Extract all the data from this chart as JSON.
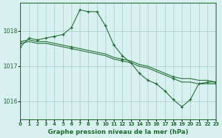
{
  "title": "Graphe pression niveau de la mer (hPa)",
  "background_color": "#d8f0f0",
  "grid_color": "#a0c8c8",
  "line_color": "#1a6b2a",
  "xlim": [
    0,
    23
  ],
  "ylim": [
    1015.5,
    1018.8
  ],
  "yticks": [
    1016,
    1017,
    1018
  ],
  "xticks": [
    0,
    1,
    2,
    3,
    4,
    5,
    6,
    7,
    8,
    9,
    10,
    11,
    12,
    13,
    14,
    15,
    16,
    17,
    18,
    19,
    20,
    21,
    22,
    23
  ],
  "series": [
    {
      "x": [
        0,
        1,
        2,
        3,
        4,
        5,
        6,
        7,
        8,
        9,
        10,
        11,
        12,
        13,
        14,
        15,
        16,
        17,
        18,
        19,
        20,
        21,
        22,
        23
      ],
      "y": [
        1017.55,
        1017.8,
        1017.75,
        1017.8,
        1017.85,
        1017.9,
        1018.1,
        1018.6,
        1018.55,
        1018.55,
        1018.15,
        1017.6,
        1017.3,
        1017.1,
        1016.8,
        1016.6,
        1016.5,
        1016.3,
        1016.05,
        1015.85,
        1016.05,
        1016.5,
        1016.55,
        1016.55
      ],
      "marker_x": [
        0,
        1,
        2,
        3,
        4,
        5,
        6,
        7,
        8,
        9,
        10,
        11,
        12,
        13,
        14,
        15,
        16,
        17,
        18,
        19,
        20,
        21,
        22,
        23
      ]
    },
    {
      "x": [
        0,
        1,
        2,
        3,
        4,
        5,
        6,
        7,
        8,
        9,
        10,
        11,
        12,
        13,
        14,
        15,
        16,
        17,
        18,
        19,
        20,
        21,
        22,
        23
      ],
      "y": [
        1017.7,
        1017.75,
        1017.7,
        1017.7,
        1017.65,
        1017.6,
        1017.55,
        1017.5,
        1017.45,
        1017.4,
        1017.35,
        1017.25,
        1017.2,
        1017.15,
        1017.05,
        1017.0,
        1016.9,
        1016.8,
        1016.7,
        1016.65,
        1016.65,
        1016.6,
        1016.6,
        1016.55
      ],
      "marker_x": [
        0,
        6,
        12,
        18,
        23
      ]
    },
    {
      "x": [
        0,
        1,
        2,
        3,
        4,
        5,
        6,
        7,
        8,
        9,
        10,
        11,
        12,
        13,
        14,
        15,
        16,
        17,
        18,
        19,
        20,
        21,
        22,
        23
      ],
      "y": [
        1017.65,
        1017.7,
        1017.65,
        1017.65,
        1017.6,
        1017.55,
        1017.5,
        1017.45,
        1017.4,
        1017.35,
        1017.3,
        1017.2,
        1017.15,
        1017.1,
        1017.0,
        1016.95,
        1016.85,
        1016.75,
        1016.65,
        1016.55,
        1016.55,
        1016.5,
        1016.5,
        1016.5
      ],
      "marker_x": [
        0,
        6,
        12,
        18,
        23
      ]
    }
  ]
}
